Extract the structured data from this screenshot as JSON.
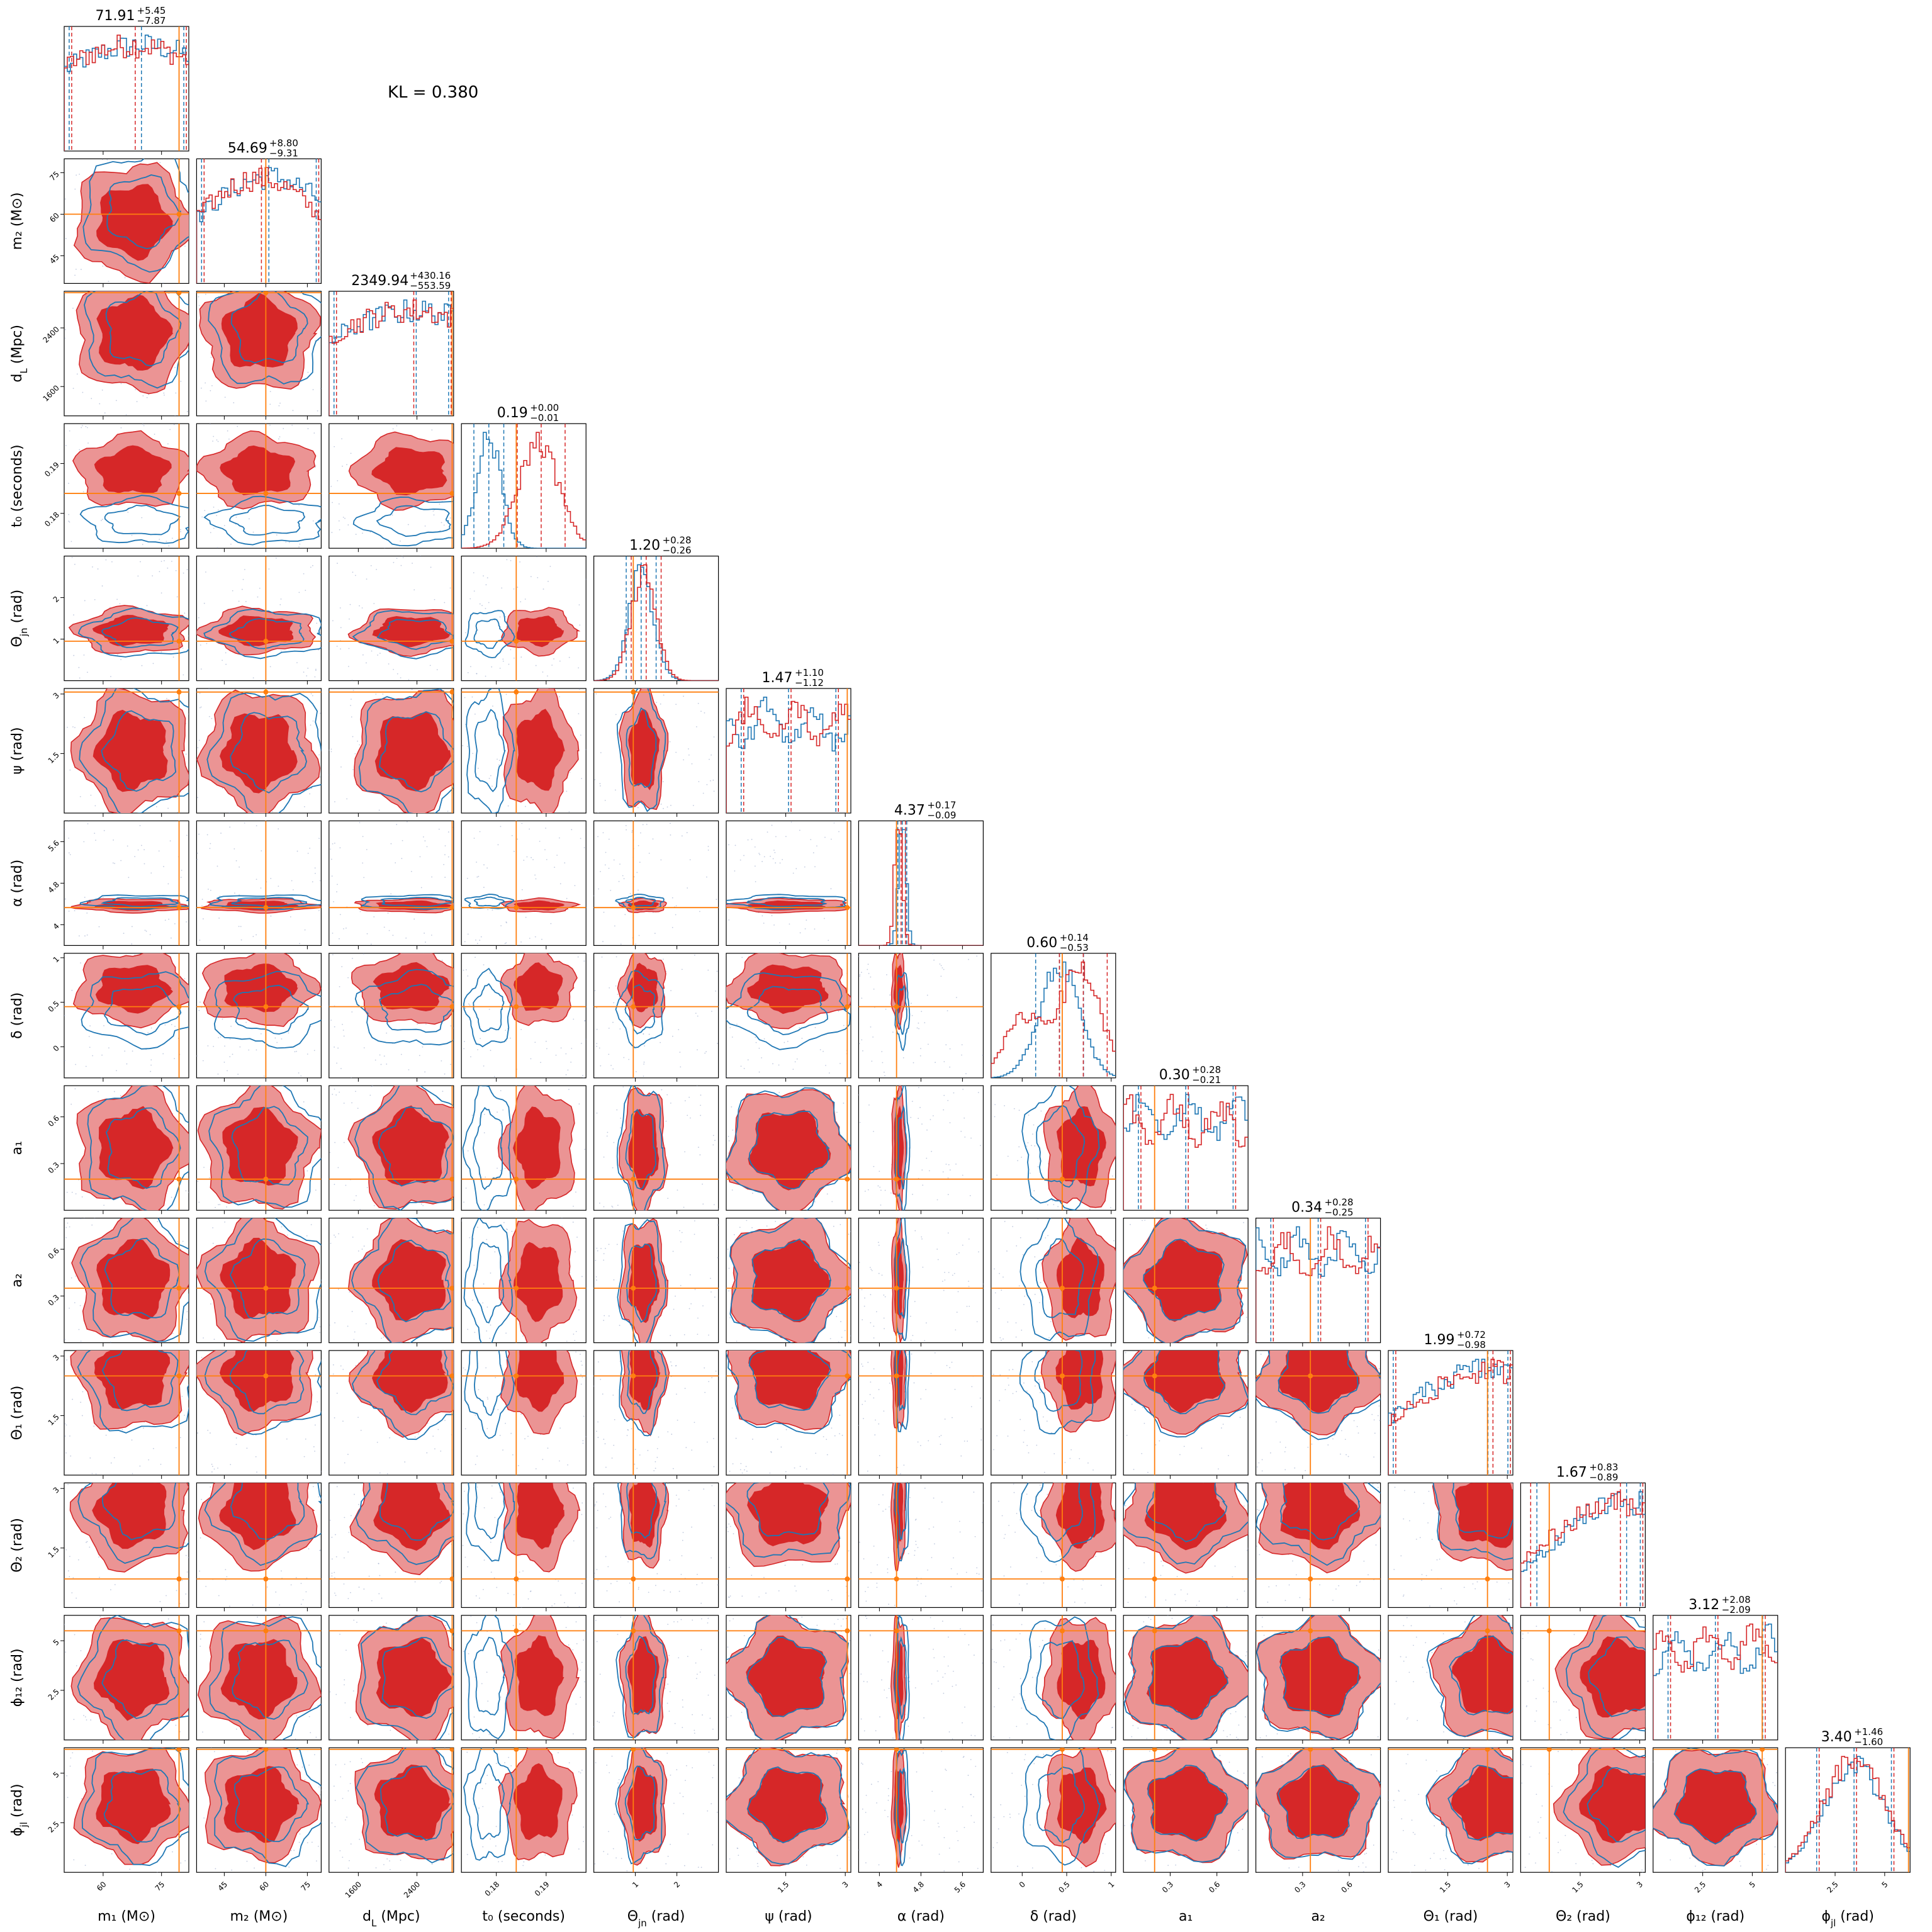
{
  "annotation": "KL = 0.380",
  "chart_data": {
    "type": "corner",
    "grid": false,
    "series": [
      {
        "color": "#1f77b4"
      },
      {
        "color": "#d62728"
      }
    ],
    "truth_color": "#ff7f0e",
    "parameters": [
      {
        "label_html": "m₁ (M⊙)",
        "title": "71.91",
        "plus": "+5.45",
        "minus": "−7.87",
        "range": [
          50,
          82
        ],
        "ticks": [
          60,
          75
        ],
        "truth": 79.5,
        "a": [
          0.62,
          0.85,
          0.65
        ],
        "b": [
          0.55,
          0.8,
          0.58
        ]
      },
      {
        "label_html": "m₂ (M⊙)",
        "title": "54.69",
        "plus": "+8.80",
        "minus": "−9.31",
        "range": [
          35,
          80
        ],
        "ticks": [
          45,
          60,
          75
        ],
        "truth": 60,
        "a": [
          0.58,
          0.58,
          0.3
        ],
        "b": [
          0.5,
          0.52,
          0.24
        ]
      },
      {
        "label_html": "d_L (Mpc)",
        "title": "2349.94",
        "plus": "+430.16",
        "minus": "−553.59",
        "range": [
          1200,
          2900
        ],
        "ticks": [
          1600,
          2400
        ],
        "truth": 2880,
        "a": [
          0.7,
          0.85,
          0.55
        ],
        "b": [
          0.66,
          0.85,
          0.55
        ]
      },
      {
        "label_html": "t₀ (seconds)",
        "title": "0.19",
        "plus": "+0.00",
        "minus": "−0.01",
        "range": [
          0.173,
          0.198
        ],
        "ticks": [
          0.18,
          0.19
        ],
        "truth": 0.184,
        "a": [
          0.22,
          0.1,
          0.55
        ],
        "b": [
          0.62,
          0.16,
          0.45
        ]
      },
      {
        "label_html": "Θ_jn (rad)",
        "title": "1.20",
        "plus": "+0.28",
        "minus": "−0.26",
        "range": [
          0,
          3
        ],
        "ticks": [
          1,
          2
        ],
        "truth": 0.95,
        "a": [
          0.38,
          0.1,
          1.0
        ],
        "b": [
          0.4,
          0.1,
          0.0
        ]
      },
      {
        "label_html": "ψ (rad)",
        "title": "1.47",
        "plus": "+1.10",
        "minus": "−1.12",
        "range": [
          0,
          3.14
        ],
        "ticks": [
          1.5,
          3.0
        ],
        "truth": 3.05,
        "a": [
          0.5,
          1.8,
          0.4
        ],
        "b": [
          0.5,
          1.8,
          0.4
        ]
      },
      {
        "label_html": "α (rad)",
        "title": "4.37",
        "plus": "+0.17",
        "minus": "−0.09",
        "range": [
          3.6,
          6.0
        ],
        "ticks": [
          4.0,
          4.8,
          5.6
        ],
        "truth": 4.33,
        "a": [
          0.35,
          0.03,
          1.0
        ],
        "b": [
          0.32,
          0.03,
          0.0
        ]
      },
      {
        "label_html": "δ (rad)",
        "title": "0.60",
        "plus": "+0.14",
        "minus": "−0.53",
        "range": [
          -0.35,
          1.05
        ],
        "ticks": [
          0.0,
          0.5,
          1.0
        ],
        "truth": 0.45,
        "a": [
          0.55,
          0.16,
          0.4
        ],
        "b": [
          0.72,
          0.16,
          0.55
        ]
      },
      {
        "label_html": "a₁",
        "title": "0.30",
        "plus": "+0.28",
        "minus": "−0.21",
        "range": [
          0,
          0.8
        ],
        "ticks": [
          0.3,
          0.6
        ],
        "truth": 0.2,
        "a": [
          0.3,
          1.8,
          0.4
        ],
        "b": [
          0.3,
          1.8,
          0.4
        ]
      },
      {
        "label_html": "a₂",
        "title": "0.34",
        "plus": "+0.28",
        "minus": "−0.25",
        "range": [
          0,
          0.8
        ],
        "ticks": [
          0.3,
          0.6
        ],
        "truth": 0.35,
        "a": [
          0.5,
          1.8,
          0.5
        ],
        "b": [
          0.5,
          1.8,
          0.5
        ]
      },
      {
        "label_html": "Θ₁ (rad)",
        "title": "1.99",
        "plus": "+0.72",
        "minus": "−0.98",
        "range": [
          0,
          3.14
        ],
        "ticks": [
          1.5,
          3.0
        ],
        "truth": 2.5,
        "a": [
          0.8,
          0.7,
          0.5
        ],
        "b": [
          0.82,
          0.7,
          0.5
        ]
      },
      {
        "label_html": "Θ₂ (rad)",
        "title": "1.67",
        "plus": "+0.83",
        "minus": "−0.89",
        "range": [
          0,
          3.14
        ],
        "ticks": [
          1.5,
          3.0
        ],
        "truth": 0.72,
        "a": [
          0.85,
          0.6,
          0.5
        ],
        "b": [
          0.78,
          0.6,
          0.5
        ]
      },
      {
        "label_html": "ϕ₁₂ (rad)",
        "title": "3.12",
        "plus": "+2.08",
        "minus": "−2.09",
        "range": [
          0,
          6.28
        ],
        "ticks": [
          2.5,
          5.0
        ],
        "truth": 5.5,
        "a": [
          0.5,
          2.0,
          0.5
        ],
        "b": [
          0.5,
          2.0,
          0.5
        ]
      },
      {
        "label_html": "ϕ_jl (rad)",
        "title": "3.40",
        "plus": "+1.46",
        "minus": "−1.60",
        "range": [
          0,
          6.28
        ],
        "ticks": [
          2.5,
          5.0
        ],
        "truth": 6.2,
        "a": [
          0.55,
          0.25,
          0.5
        ],
        "b": [
          0.55,
          0.25,
          0.5
        ]
      }
    ]
  }
}
